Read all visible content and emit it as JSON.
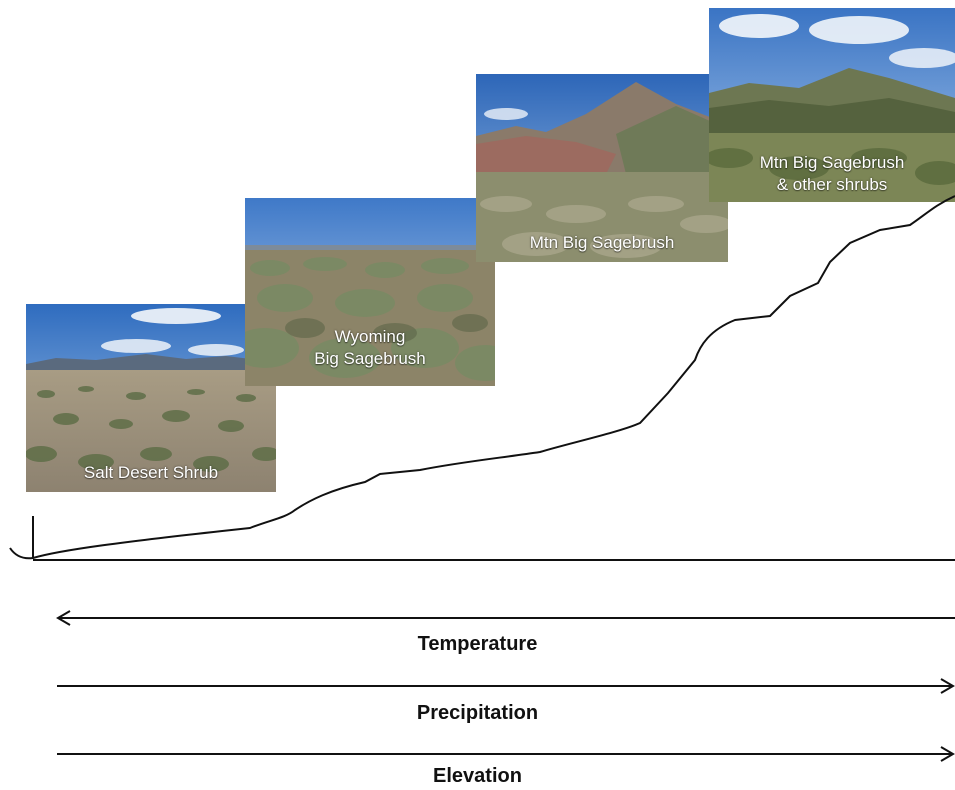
{
  "photos": [
    {
      "label": "Salt Desert Shrub"
    },
    {
      "label_line1": "Wyoming",
      "label_line2": "Big Sagebrush"
    },
    {
      "label": "Mtn  Big Sagebrush"
    },
    {
      "label_line1": "Mtn  Big Sagebrush",
      "label_line2": "& other shrubs"
    }
  ],
  "gradients": [
    {
      "label": "Temperature",
      "direction": "left"
    },
    {
      "label": "Precipitation",
      "direction": "right"
    },
    {
      "label": "Elevation",
      "direction": "right"
    }
  ],
  "colors": {
    "sky": "#4a86cc",
    "shrub_green": "#6f7d56",
    "ground_tan": "#b8a98e",
    "line": "#111111"
  }
}
